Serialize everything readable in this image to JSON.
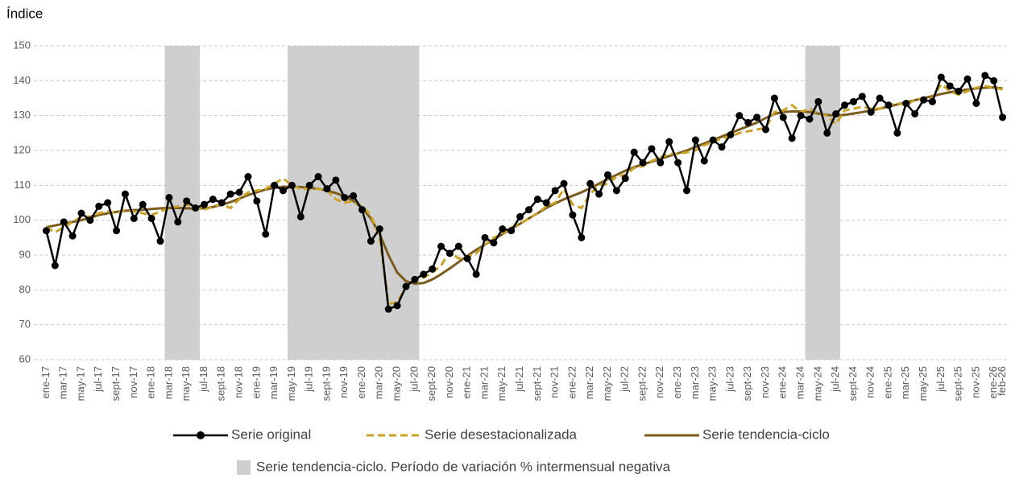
{
  "chart_data": {
    "type": "line",
    "y_label": "Índice",
    "categories": [
      "ene-17",
      null,
      "mar-17",
      null,
      "may-17",
      null,
      "jul-17",
      null,
      "sept-17",
      null,
      "nov-17",
      null,
      "ene-18",
      null,
      "mar-18",
      null,
      "may-18",
      null,
      "jul-18",
      null,
      "sept-18",
      null,
      "nov-18",
      null,
      "ene-19",
      null,
      "mar-19",
      null,
      "may-19",
      null,
      "jul-19",
      null,
      "sept-19",
      null,
      "nov-19",
      null,
      "ene-20",
      null,
      "mar-20",
      null,
      "may-20",
      null,
      "jul-20",
      null,
      "sept-20",
      null,
      "nov-20",
      null,
      "ene-21",
      null,
      "mar-21",
      null,
      "may-21",
      null,
      "jul-21",
      null,
      "sept-21",
      null,
      "nov-21",
      null,
      "ene-22",
      null,
      "mar-22",
      null,
      "may-22",
      null,
      "jul-22",
      null,
      "sept-22",
      null,
      "nov-22",
      null,
      "ene-23",
      null,
      "mar-23",
      null,
      "may-23",
      null,
      "jul-23",
      null,
      "sept-23",
      null,
      "nov-23",
      null,
      "ene-24",
      null,
      "mar-24",
      null,
      "may-24",
      null,
      "jul-24",
      null,
      "sept-24",
      null,
      "nov-24",
      null,
      "ene-25",
      null,
      "mar-25",
      null,
      "may-25",
      null,
      "jul-25",
      null,
      "sept-25",
      null,
      "nov-25",
      null,
      "ene-26",
      "feb-26"
    ],
    "series": [
      {
        "name": "Serie original",
        "color": "#000000",
        "markers": true,
        "dash": false,
        "width": 2.5,
        "values": [
          97,
          87,
          99.5,
          95.5,
          102,
          100,
          104,
          105,
          97,
          107.5,
          100.5,
          104.5,
          100.5,
          94,
          106.5,
          99.5,
          105.5,
          103.5,
          104.5,
          106,
          105,
          107.5,
          108,
          112.5,
          105.5,
          96,
          110,
          108.5,
          110,
          101,
          110,
          112.5,
          109,
          111.5,
          106.5,
          107,
          103,
          94,
          97.5,
          74.5,
          75.5,
          81,
          83,
          84.5,
          86,
          92.5,
          90.5,
          92.5,
          89,
          84.5,
          95,
          93.5,
          97.5,
          97,
          101,
          103,
          106,
          105,
          108.5,
          110.5,
          101.5,
          95,
          110.5,
          107.5,
          113,
          108.5,
          112,
          119.5,
          116.5,
          120.5,
          116.5,
          122.5,
          116.5,
          108.5,
          123,
          117,
          123,
          121,
          124.5,
          130,
          128,
          129.5,
          126,
          135,
          129.5,
          123.5,
          130,
          129,
          134,
          125,
          130.5,
          133,
          134,
          135.5,
          131,
          135,
          133,
          125,
          133.5,
          130.5,
          134.5,
          134,
          141,
          138.5,
          137,
          140.5,
          133.5,
          141.5,
          140,
          129.5
        ]
      },
      {
        "name": "Serie desestacionalizada",
        "color": "#c9a227",
        "markers": false,
        "dash": true,
        "width": 3,
        "values": [
          98,
          96.5,
          98,
          99.5,
          101,
          101,
          102,
          102.5,
          102,
          103,
          102.5,
          102,
          101.5,
          102.5,
          103.5,
          104,
          104.5,
          104,
          103,
          104,
          104.5,
          103.5,
          106,
          108,
          108.5,
          109,
          110.5,
          112,
          110,
          109,
          109,
          109,
          108.5,
          106,
          105,
          105.5,
          104,
          101.5,
          95,
          76,
          76.5,
          81,
          83,
          83.5,
          85,
          87,
          91,
          89,
          89.5,
          90.5,
          93,
          95,
          96,
          98,
          99,
          100.5,
          102,
          104,
          105,
          109,
          104.5,
          103.5,
          107.5,
          110,
          110.5,
          112.5,
          113,
          115,
          115.5,
          117,
          118,
          119,
          119,
          119.5,
          120,
          121.5,
          122.5,
          123.5,
          124,
          125,
          125.5,
          126,
          126.5,
          131,
          131.5,
          133,
          131,
          132,
          130.5,
          130,
          127.5,
          131.5,
          132,
          132.5,
          132,
          132,
          133,
          133.5,
          133,
          134.5,
          135,
          135,
          139,
          137,
          136,
          137,
          138,
          138.5,
          138,
          137.5
        ]
      },
      {
        "name": "Serie tendencia-ciclo",
        "color": "#7a5c1e",
        "markers": false,
        "dash": false,
        "width": 3,
        "values": [
          98,
          98.5,
          99,
          99.5,
          100,
          100.7,
          101.5,
          102,
          102.4,
          102.7,
          102.9,
          103,
          103.2,
          103.4,
          103.5,
          103.5,
          103.4,
          103.3,
          103.4,
          103.8,
          104.4,
          105.2,
          106.2,
          107.2,
          108,
          108.8,
          109.3,
          109.6,
          109.6,
          109.5,
          109.3,
          109,
          108.5,
          107.8,
          106.8,
          105.5,
          103.5,
          100.5,
          96,
          90,
          85,
          82.5,
          81.8,
          82,
          83,
          84.5,
          86.2,
          88,
          89.8,
          91.5,
          93,
          94.5,
          96,
          97.5,
          99,
          100.5,
          102,
          103.5,
          104.8,
          106,
          107,
          108,
          109.2,
          110.5,
          111.8,
          113,
          114.2,
          115.2,
          116,
          116.8,
          117.6,
          118.4,
          119.2,
          120,
          121,
          122,
          123,
          124,
          125,
          126,
          127,
          128,
          129.3,
          130.5,
          131,
          131.2,
          131.2,
          131,
          130.6,
          130.2,
          130,
          130.2,
          130.6,
          131,
          131.5,
          132,
          132.6,
          133.2,
          133.8,
          134.4,
          135,
          135.6,
          136.2,
          136.7,
          137.1,
          137.5,
          137.8,
          138,
          138.1,
          137.8
        ]
      }
    ],
    "highlight_ranges": [
      {
        "start": 14,
        "end": 17
      },
      {
        "start": 28,
        "end": 42
      },
      {
        "start": 87,
        "end": 90
      }
    ],
    "highlight_color": "#d0cfcf",
    "highlight_label": "Serie tendencia-ciclo. Período de variación % intermensual negativa",
    "ylim": [
      60,
      150
    ],
    "yticks": [
      60,
      70,
      80,
      90,
      100,
      110,
      120,
      130,
      140,
      150
    ],
    "grid": true
  }
}
